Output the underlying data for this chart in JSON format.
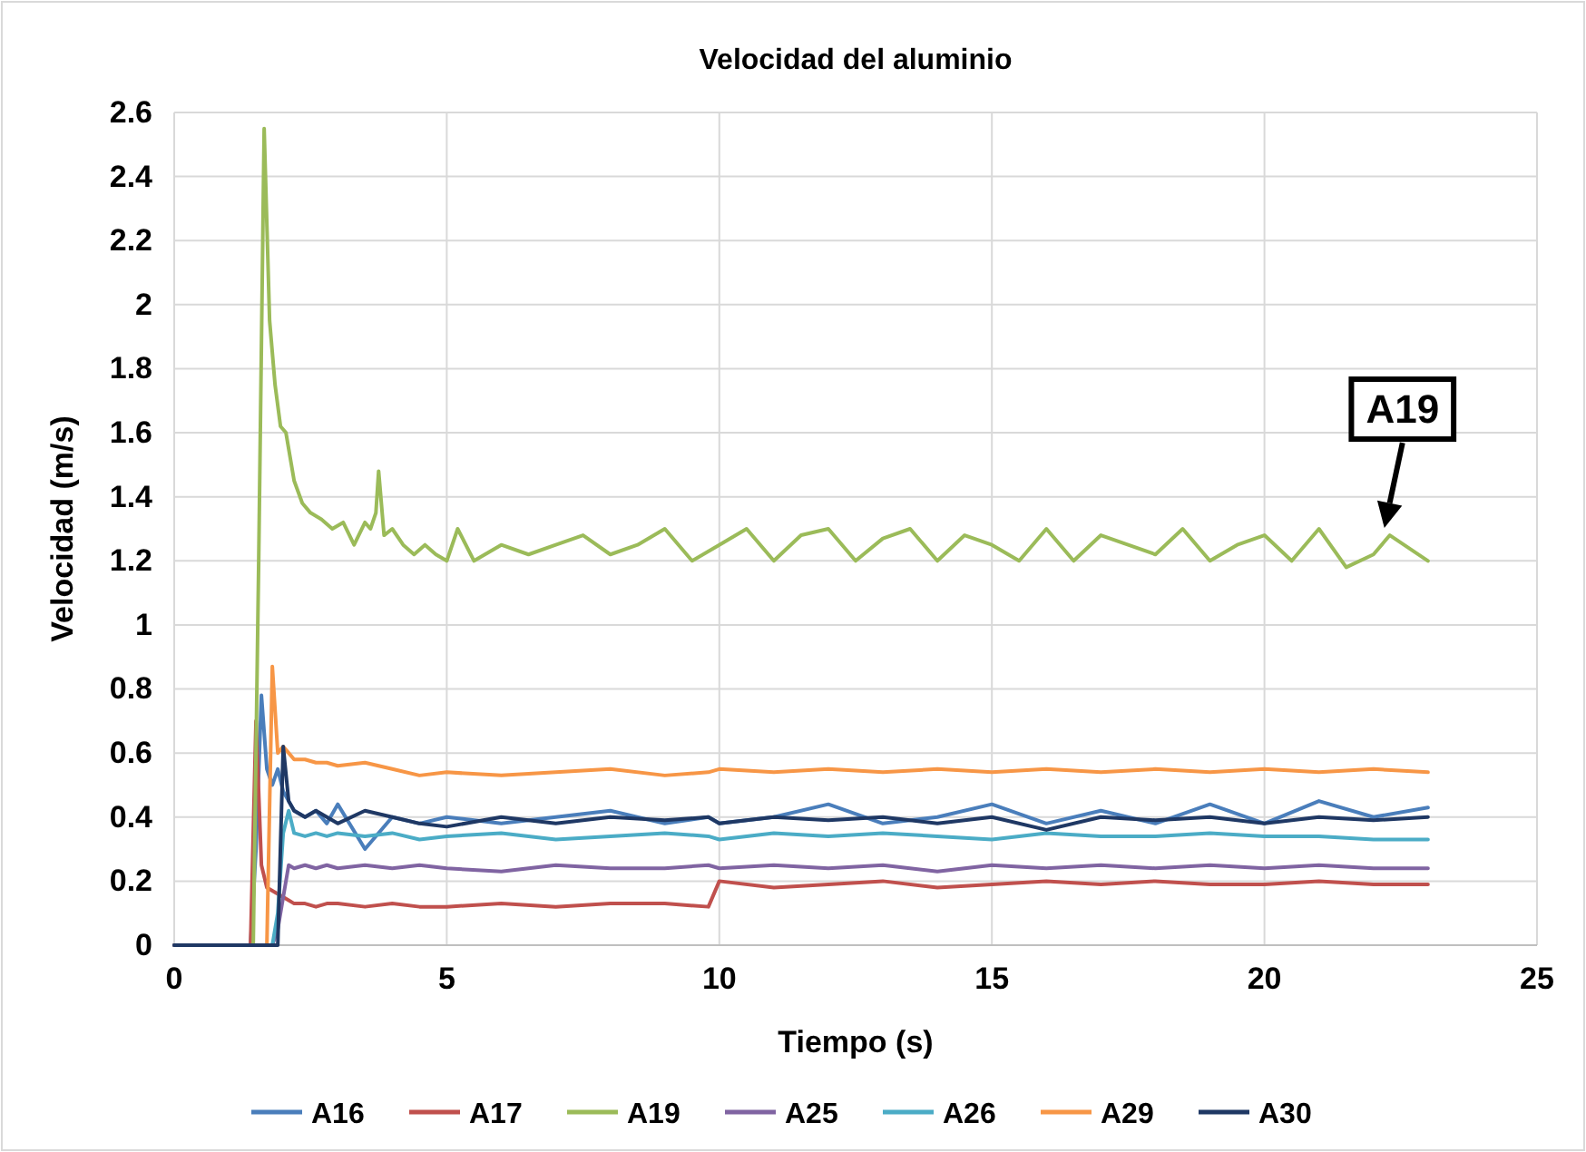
{
  "chart_data": {
    "type": "line",
    "title": "Velocidad del aluminio",
    "xlabel": "Tiempo (s)",
    "ylabel": "Velocidad (m/s)",
    "xlim": [
      0,
      25
    ],
    "xticks": [
      0,
      5,
      10,
      15,
      20,
      25
    ],
    "ylim": [
      0,
      2.6
    ],
    "yticks": [
      0,
      0.2,
      0.4,
      0.6,
      0.8,
      1,
      1.2,
      1.4,
      1.6,
      1.8,
      2,
      2.2,
      2.4,
      2.6
    ],
    "grid": true,
    "legend": "bottom",
    "annotations": [
      {
        "text": "A19",
        "x": 22.2,
        "y": 1.28
      }
    ],
    "x": [
      0,
      1.4,
      1.5,
      1.6,
      1.7,
      1.8,
      1.9,
      2.0,
      2.1,
      2.2,
      2.4,
      2.6,
      2.8,
      3,
      3.5,
      4,
      4.5,
      5,
      6,
      7,
      8,
      9,
      9.8,
      10,
      11,
      12,
      13,
      14,
      15,
      16,
      17,
      18,
      19,
      20,
      21,
      22,
      23
    ],
    "series": [
      {
        "name": "A16",
        "color": "#4a7ebb",
        "values": [
          0,
          0,
          0.3,
          0.78,
          0.55,
          0.5,
          0.55,
          0.48,
          0.45,
          0.42,
          0.4,
          0.42,
          0.38,
          0.44,
          0.3,
          0.4,
          0.38,
          0.4,
          0.38,
          0.4,
          0.42,
          0.38,
          0.4,
          0.38,
          0.4,
          0.44,
          0.38,
          0.4,
          0.44,
          0.38,
          0.42,
          0.38,
          0.44,
          0.38,
          0.45,
          0.4,
          0.43
        ]
      },
      {
        "name": "A17",
        "color": "#c0504d",
        "values": [
          0,
          0,
          0.7,
          0.25,
          0.18,
          0.17,
          0.16,
          0.15,
          0.14,
          0.13,
          0.13,
          0.12,
          0.13,
          0.13,
          0.12,
          0.13,
          0.12,
          0.12,
          0.13,
          0.12,
          0.13,
          0.13,
          0.12,
          0.2,
          0.18,
          0.19,
          0.2,
          0.18,
          0.19,
          0.2,
          0.19,
          0.2,
          0.19,
          0.19,
          0.2,
          0.19,
          0.19
        ]
      },
      {
        "name": "A19",
        "color": "#9bbb59",
        "x": [
          0,
          1.45,
          1.55,
          1.65,
          1.75,
          1.85,
          1.95,
          2.05,
          2.2,
          2.35,
          2.5,
          2.7,
          2.9,
          3.1,
          3.3,
          3.5,
          3.6,
          3.7,
          3.75,
          3.85,
          4.0,
          4.2,
          4.4,
          4.6,
          4.8,
          5.0,
          5.2,
          5.5,
          6,
          6.5,
          7,
          7.5,
          8,
          8.5,
          9,
          9.5,
          10,
          10.5,
          11,
          11.5,
          12,
          12.5,
          13,
          13.5,
          14,
          14.5,
          15,
          15.5,
          16,
          16.5,
          17,
          17.5,
          18,
          18.5,
          19,
          19.5,
          20,
          20.5,
          21,
          21.5,
          22,
          22.3,
          23
        ],
        "values": [
          0,
          0,
          1.2,
          2.55,
          1.95,
          1.75,
          1.62,
          1.6,
          1.45,
          1.38,
          1.35,
          1.33,
          1.3,
          1.32,
          1.25,
          1.32,
          1.3,
          1.35,
          1.48,
          1.28,
          1.3,
          1.25,
          1.22,
          1.25,
          1.22,
          1.2,
          1.3,
          1.2,
          1.25,
          1.22,
          1.25,
          1.28,
          1.22,
          1.25,
          1.3,
          1.2,
          1.25,
          1.3,
          1.2,
          1.28,
          1.3,
          1.2,
          1.27,
          1.3,
          1.2,
          1.28,
          1.25,
          1.2,
          1.3,
          1.2,
          1.28,
          1.25,
          1.22,
          1.3,
          1.2,
          1.25,
          1.28,
          1.2,
          1.3,
          1.18,
          1.22,
          1.28,
          1.2
        ]
      },
      {
        "name": "A25",
        "color": "#8064a2",
        "values": [
          0,
          0,
          0,
          0,
          0,
          0,
          0.05,
          0.15,
          0.25,
          0.24,
          0.25,
          0.24,
          0.25,
          0.24,
          0.25,
          0.24,
          0.25,
          0.24,
          0.23,
          0.25,
          0.24,
          0.24,
          0.25,
          0.24,
          0.25,
          0.24,
          0.25,
          0.23,
          0.25,
          0.24,
          0.25,
          0.24,
          0.25,
          0.24,
          0.25,
          0.24,
          0.24
        ]
      },
      {
        "name": "A26",
        "color": "#4bacc6",
        "values": [
          null,
          null,
          null,
          0,
          0,
          0,
          0.1,
          0.35,
          0.42,
          0.35,
          0.34,
          0.35,
          0.34,
          0.35,
          0.34,
          0.35,
          0.33,
          0.34,
          0.35,
          0.33,
          0.34,
          0.35,
          0.34,
          0.33,
          0.35,
          0.34,
          0.35,
          0.34,
          0.33,
          0.35,
          0.34,
          0.34,
          0.35,
          0.34,
          0.34,
          0.33,
          0.33
        ]
      },
      {
        "name": "A29",
        "color": "#f79646",
        "values": [
          null,
          null,
          0,
          0,
          0,
          0.87,
          0.6,
          0.62,
          0.6,
          0.58,
          0.58,
          0.57,
          0.57,
          0.56,
          0.57,
          0.55,
          0.53,
          0.54,
          0.53,
          0.54,
          0.55,
          0.53,
          0.54,
          0.55,
          0.54,
          0.55,
          0.54,
          0.55,
          0.54,
          0.55,
          0.54,
          0.55,
          0.54,
          0.55,
          0.54,
          0.55,
          0.54
        ]
      },
      {
        "name": "A30",
        "color": "#1f3864",
        "values": [
          0,
          0,
          0,
          0,
          0,
          0,
          0,
          0.62,
          0.45,
          0.42,
          0.4,
          0.42,
          0.4,
          0.38,
          0.42,
          0.4,
          0.38,
          0.37,
          0.4,
          0.38,
          0.4,
          0.39,
          0.4,
          0.38,
          0.4,
          0.39,
          0.4,
          0.38,
          0.4,
          0.36,
          0.4,
          0.39,
          0.4,
          0.38,
          0.4,
          0.39,
          0.4
        ]
      }
    ]
  }
}
